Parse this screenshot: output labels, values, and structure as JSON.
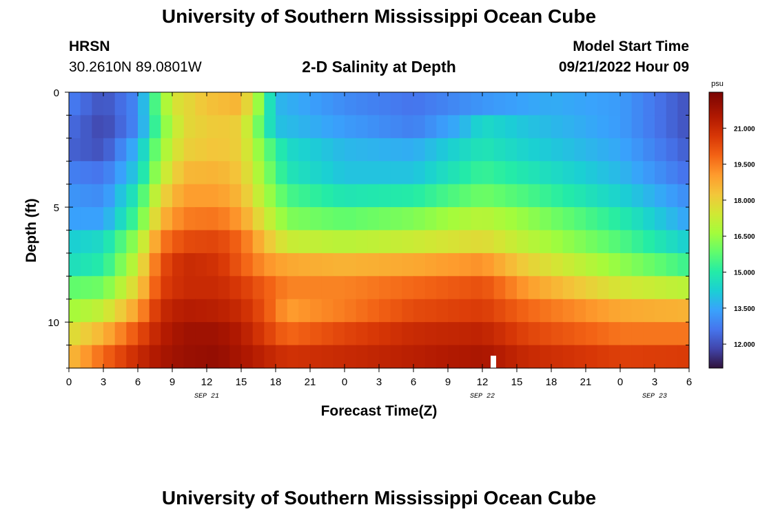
{
  "header": {
    "title": "University of Southern Mississippi Ocean Cube",
    "station_name": "HRSN",
    "coordinates": "30.2610N  89.0801W",
    "plot_title": "2-D Salinity at Depth",
    "model_start_label": "Model Start Time",
    "model_start_value": "09/21/2022 Hour 09"
  },
  "footer": {
    "title": "University of Southern Mississippi Ocean Cube"
  },
  "chart_data": {
    "type": "heatmap",
    "title": "2-D Salinity at Depth",
    "xlabel": "Forecast Time(Z)",
    "ylabel": "Depth (ft)",
    "x_hours_range": [
      0,
      54
    ],
    "y_depth_range": [
      0,
      12
    ],
    "x_tick_labels": [
      "0",
      "3",
      "6",
      "9",
      "12",
      "15",
      "18",
      "21",
      "0",
      "3",
      "6",
      "9",
      "12",
      "15",
      "18",
      "21",
      "0",
      "3",
      "6"
    ],
    "y_tick_labels": [
      "0",
      "5",
      "10"
    ],
    "y_tick_values": [
      0,
      5,
      10
    ],
    "date_labels": [
      {
        "text": "SEP 21",
        "hour": 12
      },
      {
        "text": "SEP 22",
        "hour": 36
      },
      {
        "text": "SEP 23",
        "hour": 51
      }
    ],
    "depth_bins_ft": [
      0.5,
      1.5,
      2.5,
      3.5,
      4.5,
      5.5,
      6.5,
      7.5,
      8.5,
      9.5,
      10.5,
      11.5
    ],
    "salinity_note": "approximate values read from color scale",
    "rows": [
      {
        "depth": 0.5,
        "knots": [
          [
            0,
            12.8
          ],
          [
            3,
            12.0
          ],
          [
            6,
            13.0
          ],
          [
            7.5,
            15.5
          ],
          [
            9,
            17.5
          ],
          [
            12,
            18.3
          ],
          [
            15,
            18.6
          ],
          [
            16.5,
            16.5
          ],
          [
            18,
            13.8
          ],
          [
            24,
            13.0
          ],
          [
            30,
            12.6
          ],
          [
            36,
            13.2
          ],
          [
            42,
            13.6
          ],
          [
            48,
            13.3
          ],
          [
            54,
            12.0
          ]
        ]
      },
      {
        "depth": 1.5,
        "knots": [
          [
            0,
            12.5
          ],
          [
            3,
            11.8
          ],
          [
            6,
            13.0
          ],
          [
            8,
            16.0
          ],
          [
            10,
            17.8
          ],
          [
            13,
            18.2
          ],
          [
            15,
            18.0
          ],
          [
            16.5,
            16.0
          ],
          [
            18,
            14.0
          ],
          [
            24,
            13.3
          ],
          [
            30,
            12.8
          ],
          [
            34,
            13.6
          ],
          [
            36,
            14.5
          ],
          [
            40,
            14.0
          ],
          [
            48,
            13.3
          ],
          [
            54,
            12.0
          ]
        ]
      },
      {
        "depth": 2.5,
        "knots": [
          [
            0,
            12.3
          ],
          [
            3,
            12.0
          ],
          [
            6,
            13.8
          ],
          [
            8,
            16.5
          ],
          [
            10,
            18.0
          ],
          [
            13,
            18.3
          ],
          [
            15,
            18.0
          ],
          [
            17,
            16.0
          ],
          [
            19,
            14.5
          ],
          [
            24,
            13.8
          ],
          [
            30,
            13.6
          ],
          [
            36,
            14.8
          ],
          [
            40,
            14.3
          ],
          [
            48,
            13.5
          ],
          [
            54,
            12.2
          ]
        ]
      },
      {
        "depth": 3.5,
        "knots": [
          [
            0,
            12.8
          ],
          [
            3,
            12.6
          ],
          [
            6,
            14.2
          ],
          [
            8,
            17.0
          ],
          [
            10,
            18.5
          ],
          [
            13,
            18.6
          ],
          [
            15,
            18.2
          ],
          [
            17,
            16.4
          ],
          [
            19,
            14.8
          ],
          [
            24,
            14.0
          ],
          [
            30,
            14.0
          ],
          [
            36,
            15.3
          ],
          [
            40,
            14.8
          ],
          [
            48,
            13.8
          ],
          [
            54,
            12.5
          ]
        ]
      },
      {
        "depth": 4.5,
        "knots": [
          [
            0,
            13.2
          ],
          [
            3,
            13.0
          ],
          [
            6,
            15.0
          ],
          [
            8,
            17.8
          ],
          [
            10,
            19.0
          ],
          [
            13,
            19.0
          ],
          [
            15,
            18.5
          ],
          [
            17,
            16.8
          ],
          [
            19,
            15.5
          ],
          [
            24,
            14.8
          ],
          [
            30,
            15.0
          ],
          [
            36,
            16.0
          ],
          [
            40,
            15.5
          ],
          [
            48,
            14.3
          ],
          [
            54,
            13.0
          ]
        ]
      },
      {
        "depth": 5.5,
        "knots": [
          [
            0,
            13.4
          ],
          [
            3,
            13.4
          ],
          [
            6,
            15.6
          ],
          [
            8,
            18.5
          ],
          [
            10,
            19.5
          ],
          [
            13,
            19.6
          ],
          [
            15,
            19.0
          ],
          [
            17,
            17.5
          ],
          [
            19,
            16.2
          ],
          [
            24,
            15.8
          ],
          [
            30,
            16.2
          ],
          [
            36,
            17.0
          ],
          [
            40,
            16.4
          ],
          [
            48,
            15.0
          ],
          [
            54,
            13.4
          ]
        ]
      },
      {
        "depth": 6.5,
        "knots": [
          [
            0,
            14.2
          ],
          [
            3,
            14.5
          ],
          [
            6,
            16.6
          ],
          [
            8,
            19.5
          ],
          [
            10,
            20.3
          ],
          [
            13,
            20.4
          ],
          [
            15,
            19.8
          ],
          [
            17,
            18.4
          ],
          [
            19,
            17.3
          ],
          [
            24,
            17.0
          ],
          [
            30,
            17.3
          ],
          [
            36,
            17.8
          ],
          [
            40,
            17.0
          ],
          [
            48,
            15.6
          ],
          [
            54,
            14.2
          ]
        ]
      },
      {
        "depth": 7.5,
        "knots": [
          [
            0,
            14.6
          ],
          [
            3,
            15.0
          ],
          [
            6,
            17.3
          ],
          [
            8,
            20.2
          ],
          [
            10,
            21.0
          ],
          [
            13,
            20.8
          ],
          [
            15,
            20.0
          ],
          [
            17,
            19.2
          ],
          [
            19,
            18.8
          ],
          [
            24,
            18.6
          ],
          [
            30,
            18.8
          ],
          [
            36,
            19.2
          ],
          [
            40,
            18.0
          ],
          [
            48,
            16.4
          ],
          [
            54,
            15.3
          ]
        ]
      },
      {
        "depth": 8.5,
        "knots": [
          [
            0,
            15.8
          ],
          [
            3,
            16.0
          ],
          [
            6,
            18.0
          ],
          [
            8,
            20.5
          ],
          [
            10,
            21.0
          ],
          [
            13,
            21.0
          ],
          [
            15,
            20.6
          ],
          [
            17,
            20.0
          ],
          [
            19,
            19.4
          ],
          [
            24,
            19.4
          ],
          [
            30,
            19.8
          ],
          [
            36,
            20.2
          ],
          [
            40,
            19.0
          ],
          [
            48,
            17.5
          ],
          [
            54,
            17.0
          ]
        ]
      },
      {
        "depth": 9.5,
        "knots": [
          [
            0,
            16.6
          ],
          [
            3,
            17.2
          ],
          [
            6,
            19.0
          ],
          [
            8,
            21.0
          ],
          [
            10,
            21.4
          ],
          [
            13,
            21.3
          ],
          [
            15,
            21.0
          ],
          [
            17,
            20.2
          ],
          [
            19,
            19.0
          ],
          [
            24,
            19.5
          ],
          [
            30,
            20.3
          ],
          [
            36,
            20.6
          ],
          [
            40,
            19.8
          ],
          [
            48,
            18.8
          ],
          [
            54,
            18.6
          ]
        ]
      },
      {
        "depth": 10.5,
        "knots": [
          [
            0,
            17.6
          ],
          [
            3,
            18.6
          ],
          [
            6,
            20.2
          ],
          [
            8,
            21.3
          ],
          [
            10,
            21.8
          ],
          [
            13,
            21.8
          ],
          [
            15,
            21.4
          ],
          [
            17,
            20.6
          ],
          [
            19,
            19.8
          ],
          [
            24,
            20.4
          ],
          [
            30,
            21.0
          ],
          [
            36,
            21.2
          ],
          [
            40,
            20.4
          ],
          [
            48,
            19.6
          ],
          [
            54,
            19.6
          ]
        ]
      },
      {
        "depth": 11.5,
        "knots": [
          [
            0,
            18.4
          ],
          [
            3,
            19.8
          ],
          [
            6,
            21.0
          ],
          [
            8,
            21.6
          ],
          [
            10,
            21.9
          ],
          [
            13,
            22.0
          ],
          [
            15,
            21.6
          ],
          [
            17,
            21.2
          ],
          [
            19,
            20.8
          ],
          [
            24,
            21.0
          ],
          [
            30,
            21.3
          ],
          [
            36,
            21.6
          ],
          [
            40,
            21.0
          ],
          [
            48,
            20.5
          ],
          [
            54,
            20.6
          ]
        ]
      }
    ],
    "colorbar": {
      "unit": "psu",
      "range": [
        11.0,
        22.5
      ],
      "tick_values": [
        12.0,
        13.5,
        15.0,
        16.5,
        18.0,
        19.5,
        21.0
      ],
      "tick_labels": [
        "12.000",
        "13.500",
        "15.000",
        "16.500",
        "18.000",
        "19.500",
        "21.000"
      ]
    }
  }
}
